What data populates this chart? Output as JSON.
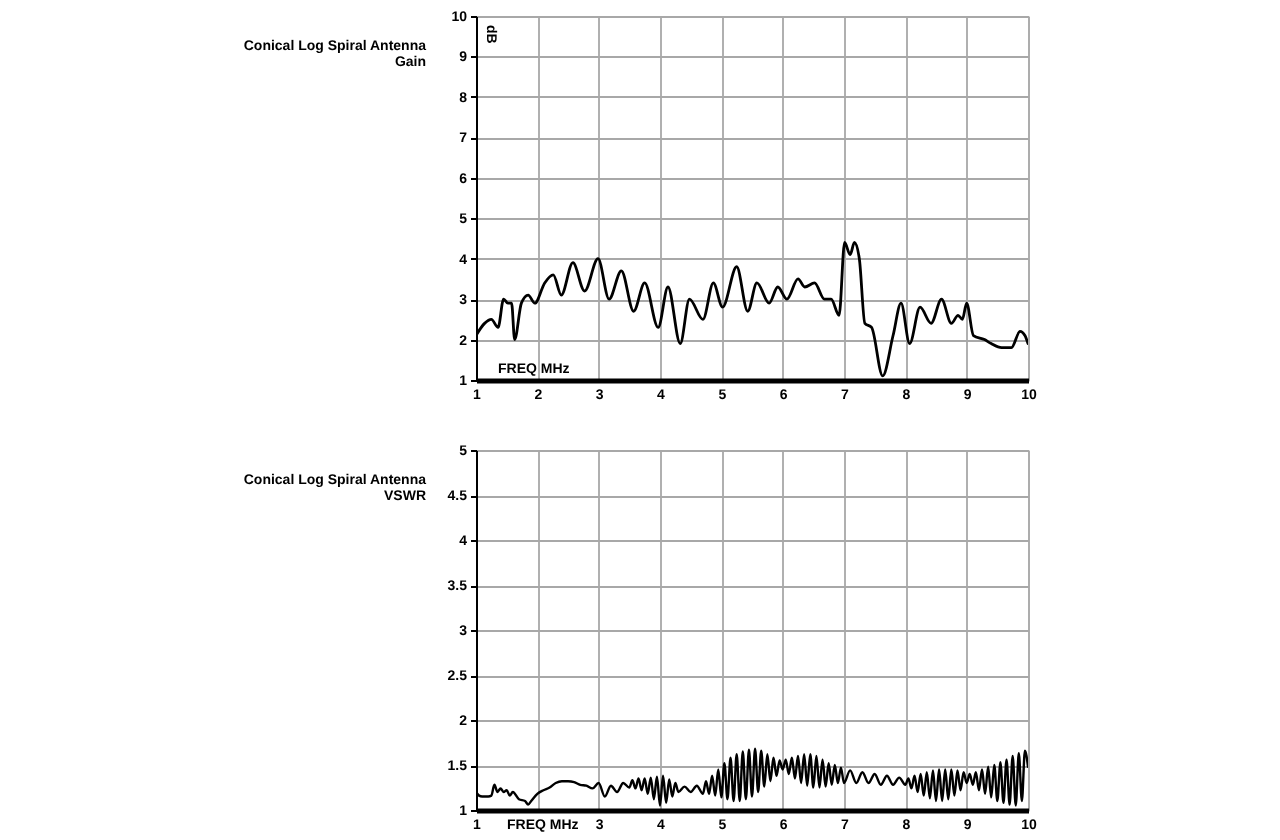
{
  "chart_data": [
    {
      "type": "line",
      "title": "Conical Log Spiral Antenna",
      "subtitle": "Gain",
      "xlabel": "FREQ MHz",
      "ylabel": "dB",
      "grid": true,
      "xlim": [
        1,
        10
      ],
      "xticks": [
        1,
        2,
        3,
        4,
        5,
        6,
        7,
        8,
        9,
        10
      ],
      "ylim": [
        1,
        10
      ],
      "yticks": [
        1,
        2,
        3,
        4,
        5,
        6,
        7,
        8,
        9,
        10
      ],
      "x": [
        1.0,
        1.14,
        1.25,
        1.36,
        1.45,
        1.52,
        1.58,
        1.63,
        1.74,
        1.85,
        1.96,
        2.12,
        2.26,
        2.39,
        2.58,
        2.77,
        2.99,
        3.17,
        3.37,
        3.57,
        3.75,
        3.97,
        4.13,
        4.33,
        4.48,
        4.7,
        4.87,
        5.02,
        5.25,
        5.43,
        5.58,
        5.78,
        5.92,
        6.07,
        6.25,
        6.36,
        6.52,
        6.68,
        6.79,
        6.92,
        7.01,
        7.1,
        7.17,
        7.25,
        7.34,
        7.45,
        7.63,
        7.8,
        7.93,
        8.07,
        8.24,
        8.42,
        8.59,
        8.75,
        8.86,
        8.93,
        9.0,
        9.11,
        9.29,
        9.4,
        9.57,
        9.73,
        9.87,
        9.95,
        10.0
      ],
      "series": [
        {
          "color": "#000000",
          "values": [
            2.1,
            2.4,
            2.5,
            2.3,
            3.0,
            2.9,
            2.9,
            2.0,
            2.9,
            3.1,
            2.9,
            3.4,
            3.6,
            3.1,
            3.9,
            3.2,
            4.0,
            3.0,
            3.7,
            2.7,
            3.4,
            2.3,
            3.3,
            1.9,
            3.0,
            2.5,
            3.4,
            2.8,
            3.8,
            2.7,
            3.4,
            2.9,
            3.3,
            3.0,
            3.5,
            3.3,
            3.4,
            3.0,
            3.0,
            2.6,
            4.4,
            4.1,
            4.4,
            4.0,
            2.4,
            2.3,
            1.1,
            2.1,
            2.9,
            1.9,
            2.8,
            2.4,
            3.0,
            2.4,
            2.6,
            2.5,
            2.9,
            2.1,
            2.0,
            1.9,
            1.8,
            1.8,
            2.2,
            2.1,
            1.9
          ]
        }
      ]
    },
    {
      "type": "line",
      "title": "Conical Log Spiral Antenna",
      "subtitle": "VSWR",
      "xlabel": "FREQ MHz",
      "grid": true,
      "xlim": [
        1,
        10
      ],
      "xticks": [
        1,
        {
          "value": 2,
          "label": null
        },
        3,
        4,
        5,
        6,
        7,
        8,
        9,
        10
      ],
      "ylim": [
        1,
        5
      ],
      "yticks": [
        1,
        1.5,
        2,
        2.5,
        3,
        3.5,
        4,
        4.5,
        5
      ],
      "x": [
        1.0,
        1.05,
        1.1,
        1.2,
        1.25,
        1.3,
        1.35,
        1.4,
        1.45,
        1.5,
        1.55,
        1.6,
        1.7,
        1.8,
        1.85,
        1.9,
        2.0,
        2.1,
        2.2,
        2.3,
        2.4,
        2.5,
        2.6,
        2.7,
        2.8,
        2.9,
        3.0,
        3.1,
        3.2,
        3.3,
        3.4,
        3.5,
        3.55,
        3.6,
        3.65,
        3.7,
        3.75,
        3.8,
        3.85,
        3.9,
        3.95,
        4.0,
        4.05,
        4.1,
        4.15,
        4.2,
        4.25,
        4.3,
        4.4,
        4.5,
        4.6,
        4.7,
        4.75,
        4.8,
        4.85,
        4.9,
        4.95,
        5.0,
        5.05,
        5.1,
        5.15,
        5.2,
        5.25,
        5.3,
        5.35,
        5.4,
        5.45,
        5.5,
        5.55,
        5.6,
        5.65,
        5.7,
        5.75,
        5.8,
        5.85,
        5.9,
        5.95,
        6.0,
        6.05,
        6.1,
        6.15,
        6.2,
        6.25,
        6.3,
        6.35,
        6.4,
        6.45,
        6.5,
        6.55,
        6.6,
        6.65,
        6.7,
        6.75,
        6.8,
        6.85,
        6.9,
        6.95,
        7.0,
        7.1,
        7.2,
        7.3,
        7.4,
        7.5,
        7.6,
        7.7,
        7.8,
        7.9,
        8.0,
        8.05,
        8.1,
        8.15,
        8.2,
        8.25,
        8.3,
        8.35,
        8.4,
        8.45,
        8.5,
        8.55,
        8.6,
        8.65,
        8.7,
        8.75,
        8.8,
        8.85,
        8.9,
        8.95,
        9.0,
        9.05,
        9.1,
        9.15,
        9.2,
        9.25,
        9.3,
        9.35,
        9.4,
        9.45,
        9.5,
        9.55,
        9.6,
        9.65,
        9.7,
        9.75,
        9.8,
        9.85,
        9.9,
        9.95,
        10.0
      ],
      "series": [
        {
          "color": "#000000",
          "values": [
            1.2,
            1.16,
            1.15,
            1.15,
            1.16,
            1.28,
            1.2,
            1.24,
            1.2,
            1.22,
            1.16,
            1.2,
            1.12,
            1.1,
            1.06,
            1.1,
            1.18,
            1.22,
            1.25,
            1.3,
            1.32,
            1.32,
            1.31,
            1.28,
            1.27,
            1.24,
            1.3,
            1.15,
            1.27,
            1.2,
            1.3,
            1.25,
            1.33,
            1.24,
            1.35,
            1.22,
            1.35,
            1.18,
            1.36,
            1.12,
            1.37,
            1.05,
            1.38,
            1.08,
            1.34,
            1.15,
            1.3,
            1.2,
            1.26,
            1.2,
            1.27,
            1.18,
            1.32,
            1.18,
            1.38,
            1.16,
            1.45,
            1.14,
            1.52,
            1.12,
            1.58,
            1.1,
            1.62,
            1.1,
            1.65,
            1.12,
            1.67,
            1.15,
            1.68,
            1.2,
            1.66,
            1.26,
            1.62,
            1.32,
            1.58,
            1.38,
            1.55,
            1.45,
            1.56,
            1.4,
            1.58,
            1.35,
            1.6,
            1.3,
            1.62,
            1.27,
            1.62,
            1.25,
            1.6,
            1.25,
            1.56,
            1.26,
            1.52,
            1.28,
            1.5,
            1.3,
            1.47,
            1.3,
            1.44,
            1.3,
            1.42,
            1.3,
            1.4,
            1.28,
            1.38,
            1.28,
            1.36,
            1.28,
            1.35,
            1.24,
            1.38,
            1.2,
            1.4,
            1.16,
            1.42,
            1.13,
            1.44,
            1.1,
            1.45,
            1.1,
            1.45,
            1.12,
            1.45,
            1.16,
            1.44,
            1.22,
            1.42,
            1.3,
            1.4,
            1.28,
            1.42,
            1.22,
            1.45,
            1.18,
            1.48,
            1.14,
            1.5,
            1.1,
            1.53,
            1.08,
            1.56,
            1.06,
            1.6,
            1.05,
            1.63,
            1.1,
            1.66,
            1.48
          ]
        }
      ]
    }
  ]
}
